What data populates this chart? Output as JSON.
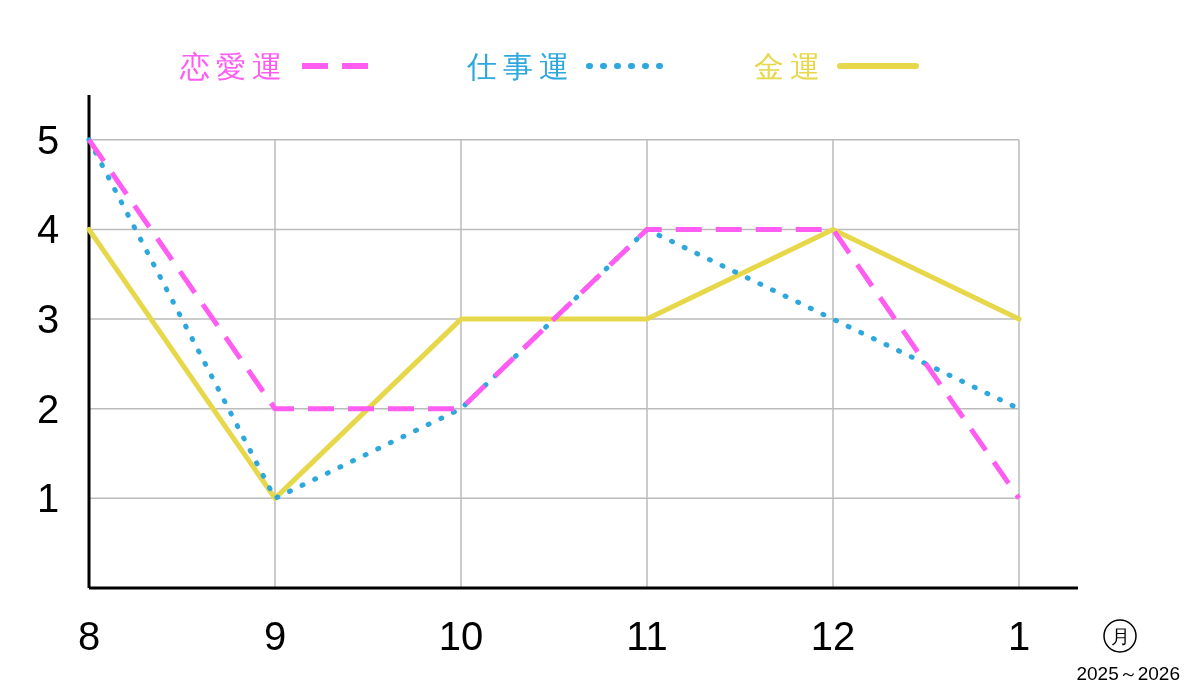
{
  "chart_data": {
    "type": "line",
    "categories": [
      "8",
      "9",
      "10",
      "11",
      "12",
      "1"
    ],
    "series": [
      {
        "name": "恋愛運",
        "color": "#ff5cf2",
        "line_style": "dashed",
        "values": [
          5,
          2,
          2,
          4,
          4,
          1
        ]
      },
      {
        "name": "仕事運",
        "color": "#2ea8dc",
        "line_style": "dotted",
        "values": [
          5,
          1,
          2,
          4,
          3,
          2
        ]
      },
      {
        "name": "金運",
        "color": "#e6d84a",
        "line_style": "solid",
        "values": [
          4,
          1,
          3,
          3,
          4,
          3
        ]
      }
    ],
    "ylim": [
      0,
      5.5
    ],
    "yticks": [
      1,
      2,
      3,
      4,
      5
    ],
    "xlabel": "月",
    "annotations": [
      "2025～2026"
    ],
    "grid": true,
    "legend": "top"
  }
}
